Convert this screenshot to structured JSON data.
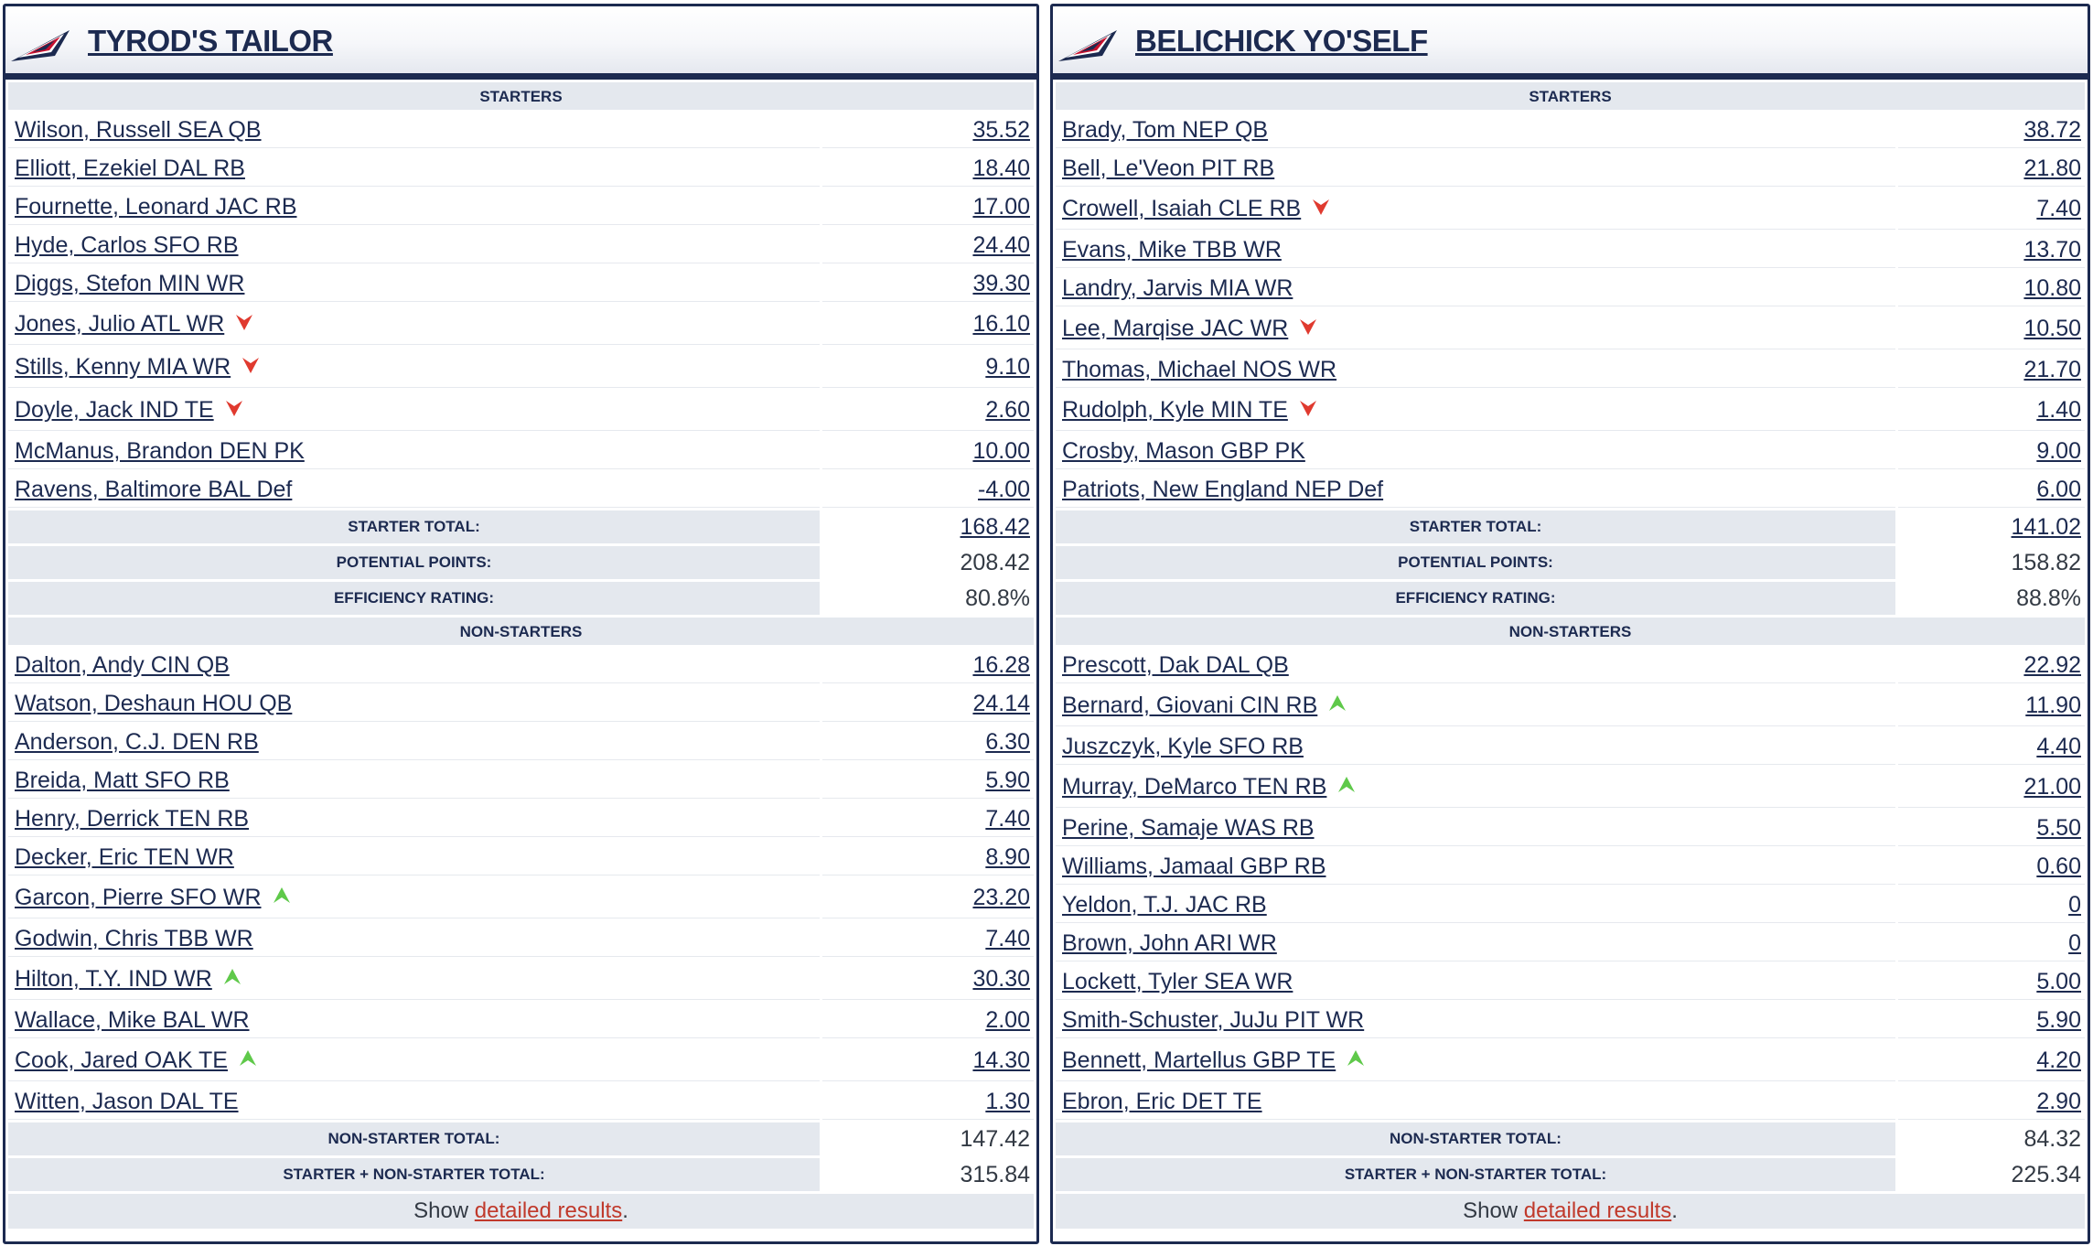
{
  "labels": {
    "starters": "STARTERS",
    "non_starters": "NON-STARTERS",
    "starter_total": "STARTER TOTAL:",
    "potential_points": "POTENTIAL POINTS:",
    "efficiency_rating": "EFFICIENCY RATING:",
    "non_starter_total": "NON-STARTER TOTAL:",
    "combined_total": "STARTER + NON-STARTER TOTAL:",
    "show_prefix": "Show ",
    "detailed_results": "detailed results",
    "show_suffix": "."
  },
  "colors": {
    "navy": "#1c2a50",
    "arrow_down": "#e03a2f",
    "arrow_up": "#5fc94a",
    "link_red": "#c0392b"
  },
  "teams": [
    {
      "name": "TYROD'S TAILOR",
      "starters": [
        {
          "player": "Wilson, Russell SEA QB",
          "points": "35.52",
          "arrow": ""
        },
        {
          "player": "Elliott, Ezekiel DAL RB",
          "points": "18.40",
          "arrow": ""
        },
        {
          "player": "Fournette, Leonard JAC RB",
          "points": "17.00",
          "arrow": ""
        },
        {
          "player": "Hyde, Carlos SFO RB",
          "points": "24.40",
          "arrow": ""
        },
        {
          "player": "Diggs, Stefon MIN WR",
          "points": "39.30",
          "arrow": ""
        },
        {
          "player": "Jones, Julio ATL WR",
          "points": "16.10",
          "arrow": "down"
        },
        {
          "player": "Stills, Kenny MIA WR",
          "points": "9.10",
          "arrow": "down"
        },
        {
          "player": "Doyle, Jack IND TE",
          "points": "2.60",
          "arrow": "down"
        },
        {
          "player": "McManus, Brandon DEN PK",
          "points": "10.00",
          "arrow": ""
        },
        {
          "player": "Ravens, Baltimore BAL Def",
          "points": "-4.00",
          "arrow": ""
        }
      ],
      "starter_total": "168.42",
      "potential_points": "208.42",
      "efficiency_rating": "80.8%",
      "non_starters": [
        {
          "player": "Dalton, Andy CIN QB",
          "points": "16.28",
          "arrow": ""
        },
        {
          "player": "Watson, Deshaun HOU QB",
          "points": "24.14",
          "arrow": ""
        },
        {
          "player": "Anderson, C.J. DEN RB",
          "points": "6.30",
          "arrow": ""
        },
        {
          "player": "Breida, Matt SFO RB",
          "points": "5.90",
          "arrow": ""
        },
        {
          "player": "Henry, Derrick TEN RB",
          "points": "7.40",
          "arrow": ""
        },
        {
          "player": "Decker, Eric TEN WR",
          "points": "8.90",
          "arrow": ""
        },
        {
          "player": "Garcon, Pierre SFO WR",
          "points": "23.20",
          "arrow": "up"
        },
        {
          "player": "Godwin, Chris TBB WR",
          "points": "7.40",
          "arrow": ""
        },
        {
          "player": "Hilton, T.Y. IND WR",
          "points": "30.30",
          "arrow": "up"
        },
        {
          "player": "Wallace, Mike BAL WR",
          "points": "2.00",
          "arrow": ""
        },
        {
          "player": "Cook, Jared OAK TE",
          "points": "14.30",
          "arrow": "up"
        },
        {
          "player": "Witten, Jason DAL TE",
          "points": "1.30",
          "arrow": ""
        }
      ],
      "non_starter_total": "147.42",
      "combined_total": "315.84"
    },
    {
      "name": "BELICHICK YO'SELF",
      "starters": [
        {
          "player": "Brady, Tom NEP QB",
          "points": "38.72",
          "arrow": ""
        },
        {
          "player": "Bell, Le'Veon PIT RB",
          "points": "21.80",
          "arrow": ""
        },
        {
          "player": "Crowell, Isaiah CLE RB",
          "points": "7.40",
          "arrow": "down"
        },
        {
          "player": "Evans, Mike TBB WR",
          "points": "13.70",
          "arrow": ""
        },
        {
          "player": "Landry, Jarvis MIA WR",
          "points": "10.80",
          "arrow": ""
        },
        {
          "player": "Lee, Marqise JAC WR",
          "points": "10.50",
          "arrow": "down"
        },
        {
          "player": "Thomas, Michael NOS WR",
          "points": "21.70",
          "arrow": ""
        },
        {
          "player": "Rudolph, Kyle MIN TE",
          "points": "1.40",
          "arrow": "down"
        },
        {
          "player": "Crosby, Mason GBP PK",
          "points": "9.00",
          "arrow": ""
        },
        {
          "player": "Patriots, New England NEP Def",
          "points": "6.00",
          "arrow": ""
        }
      ],
      "starter_total": "141.02",
      "potential_points": "158.82",
      "efficiency_rating": "88.8%",
      "non_starters": [
        {
          "player": "Prescott, Dak DAL QB",
          "points": "22.92",
          "arrow": ""
        },
        {
          "player": "Bernard, Giovani CIN RB",
          "points": "11.90",
          "arrow": "up"
        },
        {
          "player": "Juszczyk, Kyle SFO RB",
          "points": "4.40",
          "arrow": ""
        },
        {
          "player": "Murray, DeMarco TEN RB",
          "points": "21.00",
          "arrow": "up"
        },
        {
          "player": "Perine, Samaje WAS RB",
          "points": "5.50",
          "arrow": ""
        },
        {
          "player": "Williams, Jamaal GBP RB",
          "points": "0.60",
          "arrow": ""
        },
        {
          "player": "Yeldon, T.J. JAC RB",
          "points": "0",
          "arrow": ""
        },
        {
          "player": "Brown, John ARI WR",
          "points": "0",
          "arrow": ""
        },
        {
          "player": "Lockett, Tyler SEA WR",
          "points": "5.00",
          "arrow": ""
        },
        {
          "player": "Smith-Schuster, JuJu PIT WR",
          "points": "5.90",
          "arrow": ""
        },
        {
          "player": "Bennett, Martellus GBP TE",
          "points": "4.20",
          "arrow": "up"
        },
        {
          "player": "Ebron, Eric DET TE",
          "points": "2.90",
          "arrow": ""
        }
      ],
      "non_starter_total": "84.32",
      "combined_total": "225.34"
    }
  ]
}
